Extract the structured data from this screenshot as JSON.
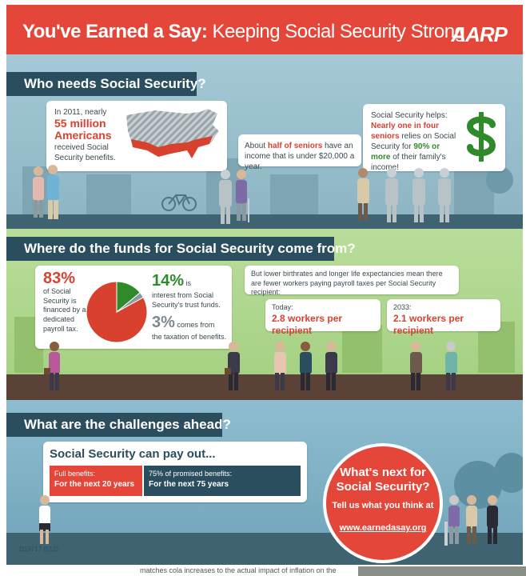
{
  "header": {
    "title_bold": "You've Earned a Say:",
    "title_light": "Keeping Social Security Strong",
    "logo": "AARP"
  },
  "section1": {
    "heading": "Who needs Social Security?",
    "card1": {
      "line1": "In 2011, nearly",
      "highlight": "55 million Americans",
      "line2": "received Social Security benefits."
    },
    "card2": {
      "pre": "About ",
      "highlight": "half of seniors",
      "post": " have an income that is under $20,000 a year."
    },
    "card3": {
      "line1": "Social Security helps:",
      "highlight1": "Nearly one in four seniors",
      "mid": " relies on Social Security for ",
      "highlight2": "90% or more",
      "post": " of their family's income!",
      "icon": "dollar-sign-icon"
    }
  },
  "section2": {
    "heading": "Where do the funds for Social Security come from?",
    "pie": {
      "p1_value": "83%",
      "p1_text": "of Social Security is financed by a dedicated payroll tax.",
      "p2_value": "14%",
      "p2_suffix": "is",
      "p2_text": "interest from Social Security's trust funds.",
      "p3_value": "3%",
      "p3_suffix": "comes from",
      "p3_text": "the taxation of benefits."
    },
    "chart_data": {
      "type": "pie",
      "categories": [
        "payroll tax",
        "trust fund interest",
        "taxation of benefits"
      ],
      "values": [
        83,
        14,
        3
      ],
      "colors": [
        "#d9412f",
        "#2f8a2a",
        "#8a9aa0"
      ]
    },
    "workers_text": "But lower birthrates and longer life expectancies mean there are fewer workers paying payroll taxes per Social Security recipient:",
    "today_label": "Today:",
    "today_value": "2.8 workers per recipient",
    "future_label": "2033:",
    "future_value": "2.1 workers per recipient"
  },
  "section3": {
    "heading": "What are the challenges ahead?",
    "payout_title": "Social Security can pay out...",
    "full_label": "Full benefits:",
    "full_value": "For the next 20 years",
    "partial_label": "75% of promised benefits:",
    "partial_value": "For the next 75 years",
    "full_fraction": 0.37
  },
  "cta": {
    "question": "What's next for Social Security?",
    "sub": "Tell us what you think at",
    "url": "www.earnedasay.org"
  },
  "code": "D19717 (512)",
  "bottom_text": "matches cola increases to the actual impact of inflation on the",
  "colors": {
    "red": "#e4473a",
    "navy": "#2b4e5e",
    "green": "#2f8a2a",
    "grey": "#8a9aa0"
  }
}
